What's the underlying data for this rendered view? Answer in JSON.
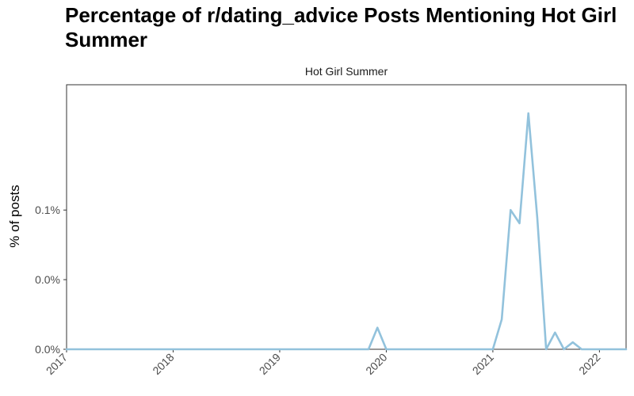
{
  "title": "Percentage of r/dating_advice Posts Mentioning Hot Girl Summer",
  "chart_data": {
    "type": "line",
    "title": "Percentage of r/dating_advice Posts Mentioning Hot Girl Summer",
    "facet_label": "Hot Girl Summer",
    "xlabel": "",
    "ylabel": "% of posts",
    "xlim": [
      "2017-01",
      "2022-04"
    ],
    "ylim": [
      0.0,
      0.19
    ],
    "y_ticks": [
      {
        "value": 0.0,
        "label": "0.0%"
      },
      {
        "value": 0.05,
        "label": "0.0%"
      },
      {
        "value": 0.1,
        "label": "0.1%"
      }
    ],
    "x_ticks": [
      "2017",
      "2018",
      "2019",
      "2020",
      "2021",
      "2022"
    ],
    "grid": false,
    "legend": "none",
    "color": "#92c2dc",
    "series": [
      {
        "x": [
          "2017-01",
          "2017-02",
          "2017-03",
          "2017-04",
          "2017-05",
          "2017-06",
          "2017-07",
          "2017-08",
          "2017-09",
          "2017-10",
          "2017-11",
          "2017-12",
          "2018-01",
          "2018-02",
          "2018-03",
          "2018-04",
          "2018-05",
          "2018-06",
          "2018-07",
          "2018-08",
          "2018-09",
          "2018-10",
          "2018-11",
          "2018-12",
          "2019-01",
          "2019-02",
          "2019-03",
          "2019-04",
          "2019-05",
          "2019-06",
          "2019-07",
          "2019-08",
          "2019-09",
          "2019-10",
          "2019-11",
          "2019-12",
          "2020-01",
          "2020-02",
          "2020-03",
          "2020-04",
          "2020-05",
          "2020-06",
          "2020-07",
          "2020-08",
          "2020-09",
          "2020-10",
          "2020-11",
          "2020-12",
          "2021-01",
          "2021-02",
          "2021-03",
          "2021-04",
          "2021-05",
          "2021-06",
          "2021-07",
          "2021-08",
          "2021-09",
          "2021-10",
          "2021-11",
          "2021-12",
          "2022-01",
          "2022-02",
          "2022-03",
          "2022-04"
        ],
        "y": [
          0,
          0,
          0,
          0,
          0,
          0,
          0,
          0,
          0,
          0,
          0,
          0,
          0,
          0,
          0,
          0,
          0,
          0,
          0,
          0,
          0,
          0,
          0,
          0,
          0,
          0,
          0,
          0,
          0,
          0,
          0,
          0,
          0,
          0,
          0,
          0.0155,
          0,
          0,
          0,
          0,
          0,
          0,
          0,
          0,
          0,
          0,
          0,
          0,
          0,
          0.0215,
          0.1,
          0.0905,
          0.1695,
          0.0945,
          0,
          0.012,
          0,
          0.005,
          0,
          0,
          0,
          0,
          0,
          0
        ]
      }
    ]
  }
}
